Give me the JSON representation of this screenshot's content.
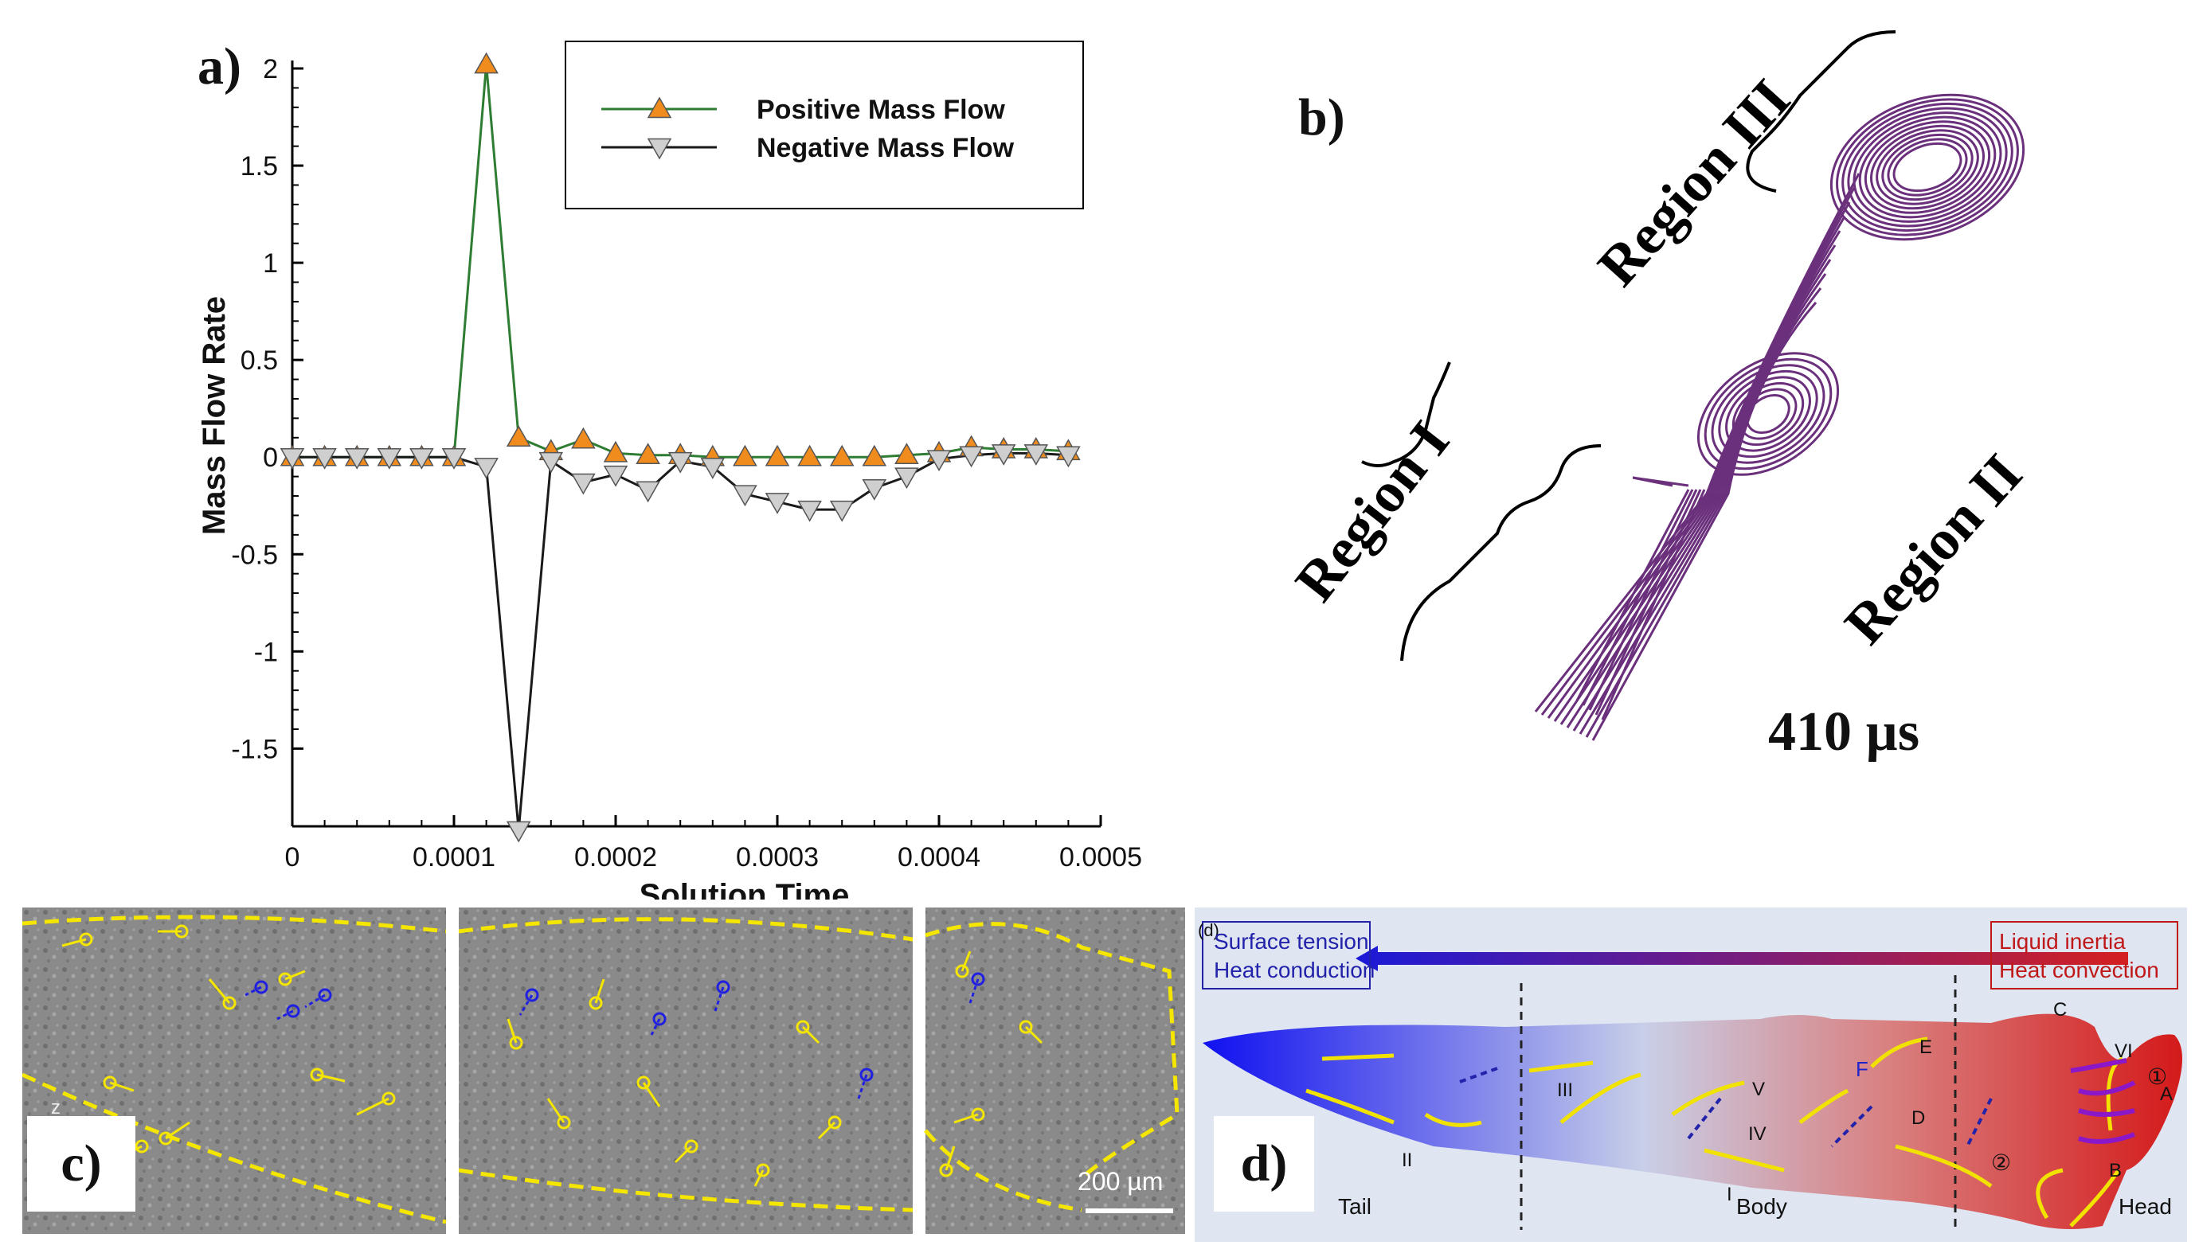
{
  "panel_a": {
    "label": "a)",
    "chart_data": {
      "type": "line",
      "title": "",
      "xlabel": "Solution Time",
      "ylabel": "Mass Flow Rate",
      "xlim": [
        0,
        0.0005
      ],
      "ylim": [
        -1.9,
        2.0
      ],
      "xticks": [
        0,
        0.0001,
        0.0002,
        0.0003,
        0.0004,
        0.0005
      ],
      "xtick_labels": [
        "0",
        "0.0001",
        "0.0002",
        "0.0003",
        "0.0004",
        "0.0005"
      ],
      "yticks": [
        2,
        1.5,
        1,
        0.5,
        0,
        -0.5,
        -1,
        -1.5
      ],
      "ytick_labels": [
        "2",
        "1.5",
        "1",
        "0.5",
        "0",
        "-0.5",
        "-1",
        "-1.5"
      ],
      "legend_position": "top-right",
      "x": [
        0,
        2e-05,
        4e-05,
        6e-05,
        8e-05,
        0.0001,
        0.00012,
        0.00014,
        0.00016,
        0.00018,
        0.0002,
        0.00022,
        0.00024,
        0.00026,
        0.00028,
        0.0003,
        0.00032,
        0.00034,
        0.00036,
        0.00038,
        0.0004,
        0.00042,
        0.00044,
        0.00046,
        0.00048
      ],
      "series": [
        {
          "name": "Positive Mass Flow",
          "line_color": "#2e7d32",
          "marker_color": "#f08c1e",
          "marker": "triangle-up",
          "values": [
            0,
            0,
            0,
            0,
            0,
            0,
            2.02,
            0.1,
            0.03,
            0.09,
            0.02,
            0.01,
            0.01,
            0,
            0,
            0,
            0,
            0,
            0,
            0.01,
            0.02,
            0.05,
            0.04,
            0.04,
            0.03
          ]
        },
        {
          "name": "Negative Mass Flow",
          "line_color": "#1a1a1a",
          "marker_color": "#cfcfcf",
          "marker": "triangle-down",
          "values": [
            0,
            0,
            0,
            0,
            0,
            0,
            -0.05,
            -1.92,
            -0.02,
            -0.13,
            -0.09,
            -0.17,
            -0.02,
            -0.05,
            -0.19,
            -0.23,
            -0.27,
            -0.27,
            -0.16,
            -0.1,
            -0.01,
            0.01,
            0.02,
            0.02,
            0.01
          ]
        }
      ]
    }
  },
  "panel_b": {
    "label": "b)",
    "region_1": "Region I",
    "region_2": "Region II",
    "region_3": "Region III",
    "time_label": "410 µs",
    "streamline_color": "#5b1a6e"
  },
  "panel_c": {
    "label": "c)",
    "scale_bar": "200 µm",
    "corner_mark": "z"
  },
  "panel_d": {
    "label": "d)",
    "corner_tag": "(d)",
    "left_box": [
      "Surface tension",
      "Heat conduction"
    ],
    "right_box": [
      "Liquid inertia",
      "Heat convection"
    ],
    "zones": [
      "Tail",
      "Body",
      "Head"
    ],
    "roman": [
      "I",
      "II",
      "III",
      "IV",
      "V",
      "VI"
    ],
    "letters": [
      "A",
      "B",
      "C",
      "D",
      "E",
      "F"
    ],
    "circled": [
      "①",
      "②"
    ]
  }
}
